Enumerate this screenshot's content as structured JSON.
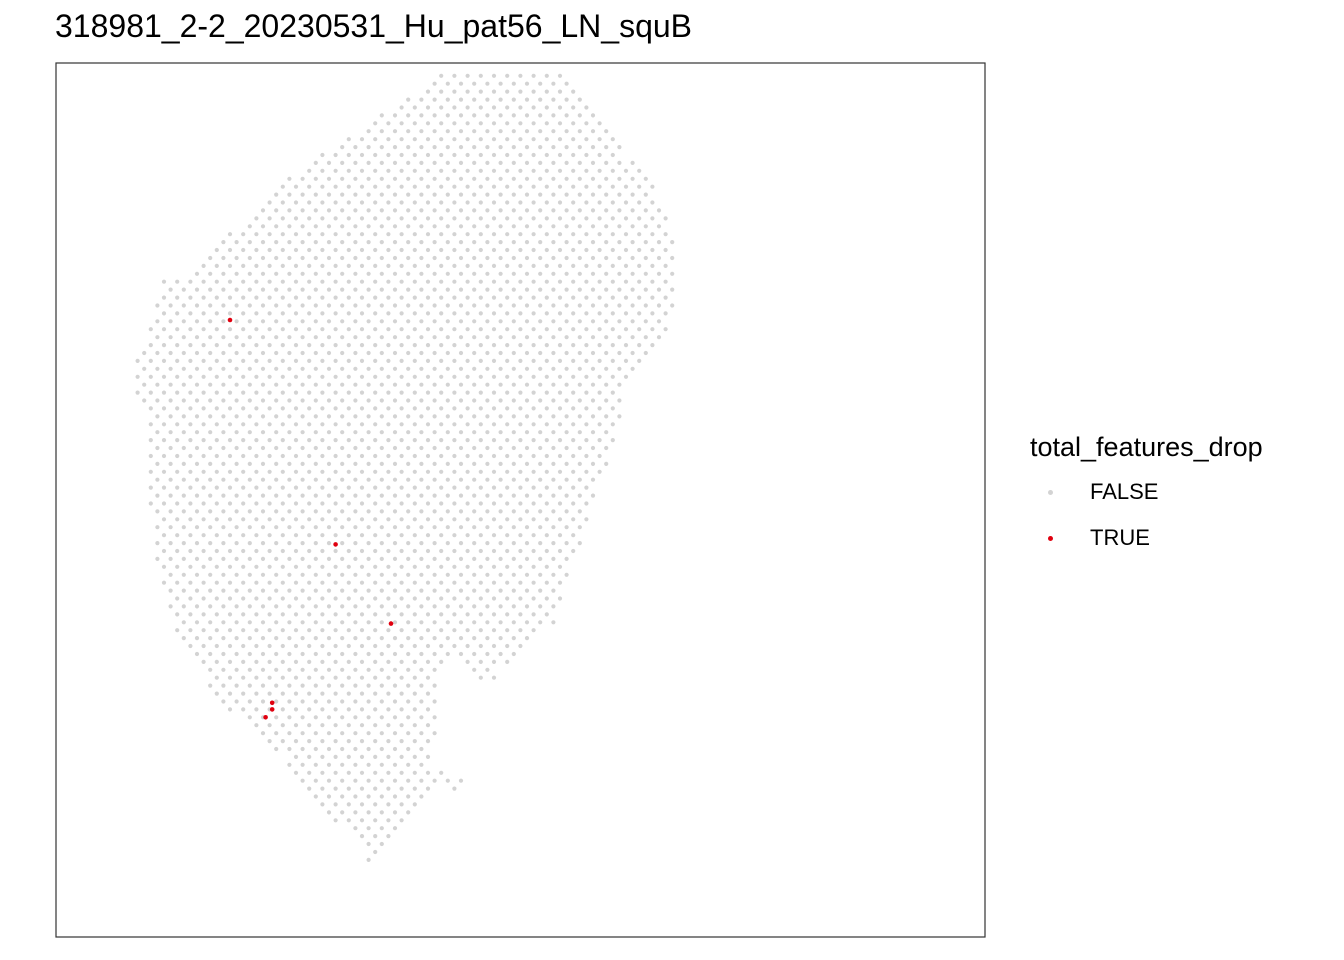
{
  "chart_data": {
    "type": "scatter",
    "title": "318981_2-2_20230531_Hu_pat56_LN_squB",
    "xlabel": "",
    "ylabel": "",
    "grid": false,
    "axes_ticks": false,
    "legend_position": "right",
    "legend": {
      "title": "total_features_drop",
      "entries": [
        {
          "label": "FALSE",
          "color": "#d3d3d3"
        },
        {
          "label": "TRUE",
          "color": "#e0000f"
        }
      ]
    },
    "series": [
      {
        "name": "FALSE",
        "color": "#d3d3d3",
        "description_note": "hexagonal grid of spots covering tissue outline (spatial transcriptomics capture area)",
        "outline": [
          [
            -3,
            -3.5
          ],
          [
            0.5,
            -7
          ],
          [
            3,
            -9.5
          ],
          [
            6,
            -12
          ],
          [
            10,
            -14.5
          ],
          [
            13,
            -16.5
          ],
          [
            16,
            -18.5
          ],
          [
            18,
            -21
          ],
          [
            20,
            -22
          ],
          [
            22,
            -22
          ],
          [
            24,
            -21
          ],
          [
            25,
            -19.5
          ],
          [
            27,
            -17
          ],
          [
            28,
            -15
          ],
          [
            30,
            -12.5
          ],
          [
            32,
            -10.5
          ],
          [
            33,
            -8
          ],
          [
            34,
            -6
          ],
          [
            34,
            -2
          ],
          [
            33,
            1
          ],
          [
            32,
            3
          ],
          [
            30,
            5
          ],
          [
            29.5,
            8
          ],
          [
            28.5,
            11
          ],
          [
            27.5,
            14
          ],
          [
            26.5,
            17
          ],
          [
            25.5,
            20
          ],
          [
            24.5,
            23
          ],
          [
            22.5,
            25
          ],
          [
            21,
            26
          ],
          [
            20,
            26.5
          ],
          [
            21,
            27.5
          ],
          [
            19,
            27.5
          ],
          [
            17,
            25
          ],
          [
            16,
            27
          ],
          [
            16,
            31
          ],
          [
            15,
            33.5
          ],
          [
            17.5,
            34.5
          ],
          [
            18,
            36
          ],
          [
            16,
            35
          ],
          [
            15,
            36
          ],
          [
            13,
            38
          ],
          [
            11.5,
            40
          ],
          [
            10.5,
            41
          ],
          [
            9.5,
            38.5
          ],
          [
            8,
            38
          ],
          [
            6,
            36
          ],
          [
            4,
            33
          ],
          [
            2,
            31.5
          ],
          [
            0,
            29.5
          ],
          [
            -1.5,
            28
          ],
          [
            -2.5,
            26
          ],
          [
            -3,
            25
          ],
          [
            -4,
            23.5
          ],
          [
            -5,
            21
          ],
          [
            -5.5,
            19
          ],
          [
            -6,
            15
          ],
          [
            -6,
            11
          ],
          [
            -6,
            7
          ],
          [
            -7,
            5.5
          ],
          [
            -7,
            3
          ],
          [
            -6,
            0
          ],
          [
            -5,
            -3
          ],
          [
            -3,
            -3.5
          ]
        ]
      },
      {
        "name": "TRUE",
        "color": "#e0000f",
        "points": [
          [
            0.0,
            0.0
          ],
          [
            8.0,
            17.0
          ],
          [
            12.2,
            23.0
          ],
          [
            3.2,
            29.5
          ],
          [
            3.2,
            29.0
          ],
          [
            2.7,
            30.1
          ]
        ]
      }
    ],
    "xlim": [
      -9,
      35
    ],
    "ylim": [
      -24.5,
      44
    ]
  }
}
